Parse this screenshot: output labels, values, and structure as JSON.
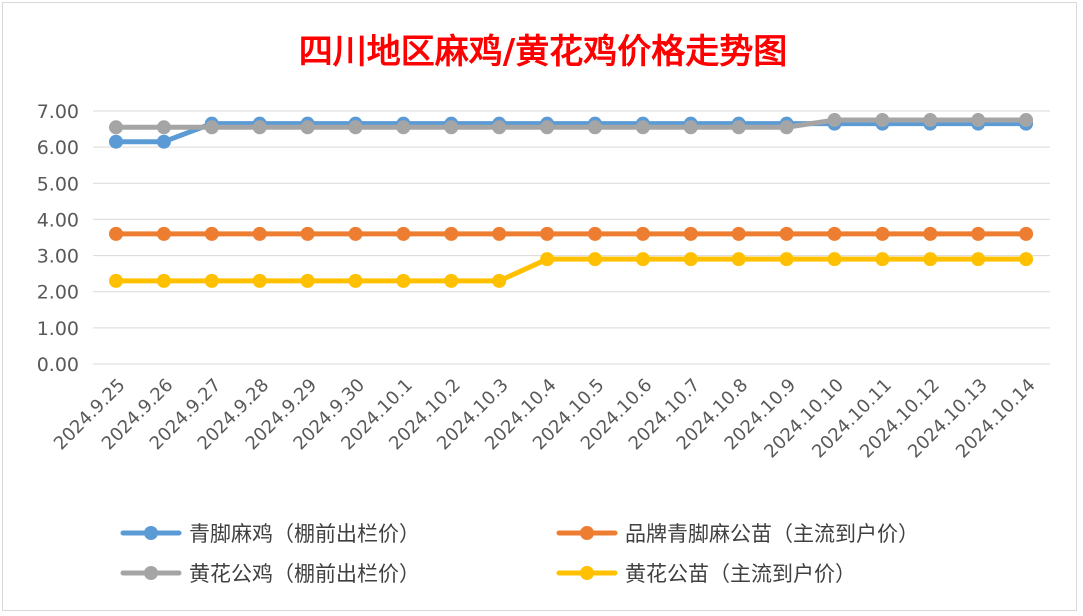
{
  "chart_data": {
    "type": "line",
    "title": "四川地区麻鸡/黄花鸡价格走势图",
    "title_color": "#ff0000",
    "categories": [
      "2024.9.25",
      "2024.9.26",
      "2024.9.27",
      "2024.9.28",
      "2024.9.29",
      "2024.9.30",
      "2024.10.1",
      "2024.10.2",
      "2024.10.3",
      "2024.10.4",
      "2024.10.5",
      "2024.10.6",
      "2024.10.7",
      "2024.10.8",
      "2024.10.9",
      "2024.10.10",
      "2024.10.11",
      "2024.10.12",
      "2024.10.13",
      "2024.10.14"
    ],
    "y_ticks": [
      "7.00",
      "6.00",
      "5.00",
      "4.00",
      "3.00",
      "2.00",
      "1.00",
      "0.00"
    ],
    "ylim": [
      0,
      7
    ],
    "grid": true,
    "legend_position": "bottom",
    "series": [
      {
        "name": "青脚麻鸡（棚前出栏价）",
        "color": "#5b9bd5",
        "values": [
          6.15,
          6.15,
          6.65,
          6.65,
          6.65,
          6.65,
          6.65,
          6.65,
          6.65,
          6.65,
          6.65,
          6.65,
          6.65,
          6.65,
          6.65,
          6.65,
          6.65,
          6.65,
          6.65,
          6.65
        ]
      },
      {
        "name": "品牌青脚麻公苗（主流到户价）",
        "color": "#ed7d31",
        "values": [
          3.6,
          3.6,
          3.6,
          3.6,
          3.6,
          3.6,
          3.6,
          3.6,
          3.6,
          3.6,
          3.6,
          3.6,
          3.6,
          3.6,
          3.6,
          3.6,
          3.6,
          3.6,
          3.6,
          3.6
        ]
      },
      {
        "name": "黄花公鸡（棚前出栏价）",
        "color": "#a5a5a5",
        "values": [
          6.55,
          6.55,
          6.55,
          6.55,
          6.55,
          6.55,
          6.55,
          6.55,
          6.55,
          6.55,
          6.55,
          6.55,
          6.55,
          6.55,
          6.55,
          6.75,
          6.75,
          6.75,
          6.75,
          6.75
        ]
      },
      {
        "name": "黄花公苗（主流到户价）",
        "color": "#ffc000",
        "values": [
          2.3,
          2.3,
          2.3,
          2.3,
          2.3,
          2.3,
          2.3,
          2.3,
          2.3,
          2.9,
          2.9,
          2.9,
          2.9,
          2.9,
          2.9,
          2.9,
          2.9,
          2.9,
          2.9,
          2.9
        ]
      }
    ]
  }
}
